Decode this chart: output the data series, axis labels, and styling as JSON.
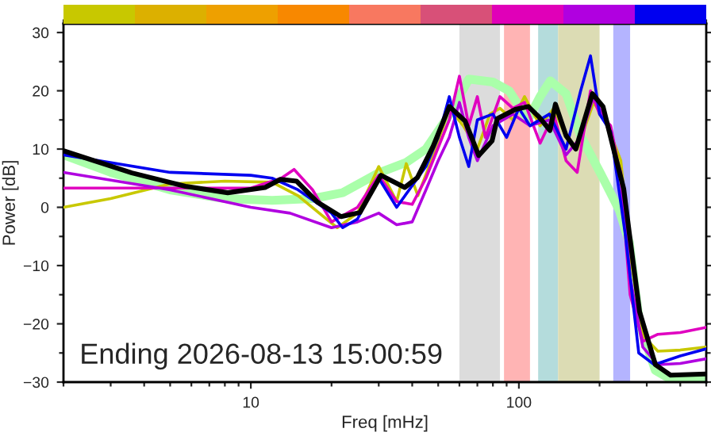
{
  "chart_data": {
    "type": "line",
    "xlabel": "Freq [mHz]",
    "ylabel": "Power [dB]",
    "annotations": [
      "Ending 2026-08-13 15:00:59"
    ],
    "log": "x",
    "grid": false,
    "legend": false,
    "marker": "none",
    "line_style": "solid",
    "xlim": [
      2,
      500
    ],
    "xticks": [
      {
        "value": 2,
        "label": null
      },
      {
        "value": 3,
        "label": null
      },
      {
        "value": 4,
        "label": null
      },
      {
        "value": 5,
        "label": null
      },
      {
        "value": 6,
        "label": null
      },
      {
        "value": 7,
        "label": null
      },
      {
        "value": 8,
        "label": null
      },
      {
        "value": 9,
        "label": null
      },
      10,
      {
        "value": 20,
        "label": null
      },
      {
        "value": 30,
        "label": null
      },
      {
        "value": 40,
        "label": null
      },
      {
        "value": 50,
        "label": null
      },
      {
        "value": 60,
        "label": null
      },
      {
        "value": 70,
        "label": null
      },
      {
        "value": 80,
        "label": null
      },
      {
        "value": 90,
        "label": null
      },
      100,
      {
        "value": 200,
        "label": null
      },
      {
        "value": 300,
        "label": null
      },
      {
        "value": 400,
        "label": null
      },
      {
        "value": 500,
        "label": null
      }
    ],
    "ylim": [
      -30,
      31.5
    ],
    "yticks": [
      {
        "value": -30,
        "label": "−30"
      },
      {
        "value": -25,
        "label": null
      },
      {
        "value": -20,
        "label": "−20"
      },
      {
        "value": -15,
        "label": null
      },
      {
        "value": -10,
        "label": "−10"
      },
      {
        "value": -5,
        "label": null
      },
      0,
      {
        "value": 5,
        "label": null
      },
      10,
      {
        "value": 15,
        "label": null
      },
      20,
      {
        "value": 25,
        "label": null
      },
      30
    ],
    "bands": [
      {
        "axis": "x",
        "from": 60,
        "to": 85,
        "color": "#dcdcdc"
      },
      {
        "axis": "x",
        "from": 88,
        "to": 110,
        "color": "#ffb4b4"
      },
      {
        "axis": "x",
        "from": 118,
        "to": 140,
        "color": "#b4dcdc"
      },
      {
        "axis": "x",
        "from": 140,
        "to": 200,
        "color": "#dcdcb4"
      },
      {
        "axis": "x",
        "from": 225,
        "to": 260,
        "color": "#b4b4ff"
      }
    ],
    "series": [
      {
        "color": "#aaffaa",
        "x": [
          2,
          3,
          5,
          8,
          12,
          17,
          22,
          30,
          38,
          45,
          55,
          65,
          80,
          92,
          108,
          120,
          131,
          150,
          170,
          206,
          237,
          258,
          282,
          323,
          368,
          500
        ],
        "values": [
          9,
          6,
          3,
          1.5,
          1.2,
          1.5,
          2.5,
          5.9,
          7.7,
          10,
          15.9,
          22,
          21.5,
          20,
          15,
          19,
          21.7,
          19.5,
          12.3,
          5,
          -0.5,
          -6,
          -20,
          -28,
          -29.5,
          -29.5
        ]
      },
      {
        "color": "#c8c800",
        "x": [
          2,
          3,
          5,
          8,
          12,
          15,
          18,
          21,
          25,
          30,
          35,
          38,
          42,
          48,
          55,
          62,
          70,
          78,
          85,
          95,
          105,
          120,
          135,
          150,
          165,
          190,
          210,
          240,
          260,
          290,
          330,
          400,
          500
        ],
        "values": [
          0,
          1.5,
          4,
          4.5,
          4.3,
          2,
          -1,
          -3.5,
          -1,
          7,
          1,
          7.5,
          2,
          9,
          17,
          14,
          10,
          16,
          17,
          15,
          19,
          14,
          17,
          12,
          10,
          18,
          15,
          8,
          -8,
          -22,
          -24.7,
          -24.5,
          -24
        ]
      },
      {
        "color": "#e000c0",
        "x": [
          2,
          5,
          10,
          13,
          14.5,
          17,
          20,
          25,
          30,
          35,
          40,
          45,
          55,
          60,
          65,
          70,
          75,
          85,
          95,
          105,
          120,
          135,
          150,
          165,
          185,
          200,
          220,
          240,
          260,
          290,
          330,
          400,
          500
        ],
        "values": [
          3.3,
          3.3,
          3.3,
          5,
          6.5,
          3,
          -2.5,
          0,
          5.5,
          1,
          0.5,
          5,
          15,
          22.5,
          14,
          19,
          12,
          19,
          17,
          18,
          11,
          16,
          8,
          6,
          20,
          16,
          14,
          5,
          -15,
          -23,
          -21.8,
          -21.5,
          -20.6
        ]
      },
      {
        "color": "#b000e0",
        "x": [
          2,
          5,
          10,
          14,
          20,
          25,
          30,
          35,
          40,
          45,
          50,
          55,
          60,
          65,
          70,
          80,
          95,
          110,
          130,
          150,
          170,
          190,
          210,
          240,
          260,
          290,
          330,
          400,
          500
        ],
        "values": [
          6,
          3,
          0,
          -1,
          -3.5,
          -2.5,
          -1,
          -3,
          -2.5,
          3,
          8,
          12,
          18,
          12,
          8,
          14,
          16,
          14,
          15,
          9,
          12,
          19,
          15,
          6,
          -12,
          -24,
          -27,
          -26.8,
          -26
        ]
      },
      {
        "color": "#0000f0",
        "x": [
          2,
          5,
          10,
          12,
          15,
          20,
          22,
          25,
          30,
          35,
          45,
          50,
          55,
          60,
          65,
          70,
          80,
          90,
          100,
          110,
          130,
          150,
          170,
          185,
          200,
          220,
          250,
          280,
          320,
          400,
          500
        ],
        "values": [
          9,
          6,
          5.5,
          5,
          3,
          -1,
          -3.5,
          -2,
          5,
          0,
          7,
          12,
          19,
          12,
          7,
          15,
          16,
          12,
          17,
          14,
          16,
          10,
          20,
          26,
          16,
          13,
          -5,
          -25,
          -27,
          -25.5,
          -24.3
        ]
      },
      {
        "color": "#000000",
        "x": [
          2,
          3.6,
          5.7,
          8.2,
          11.3,
          12.9,
          14.8,
          17.7,
          21.7,
          25.5,
          30.6,
          37.5,
          41.8,
          47.9,
          55,
          63,
          70.8,
          79.4,
          83,
          97,
          108.4,
          119,
          130.6,
          136.9,
          150,
          163,
          188,
          206,
          227,
          246,
          258,
          282,
          323,
          368,
          500
        ],
        "values": [
          9.7,
          5.9,
          3.6,
          2.5,
          3.4,
          4.8,
          4.5,
          0.9,
          -1.6,
          -0.9,
          5.5,
          3.4,
          5.1,
          10.5,
          17.3,
          14.8,
          8.9,
          11.4,
          15.2,
          16.8,
          17.3,
          15.5,
          13.2,
          17.7,
          12.3,
          10,
          19.5,
          17.3,
          9.5,
          3.2,
          -4.3,
          -17.9,
          -27,
          -28.8,
          -28.6
        ]
      }
    ]
  }
}
